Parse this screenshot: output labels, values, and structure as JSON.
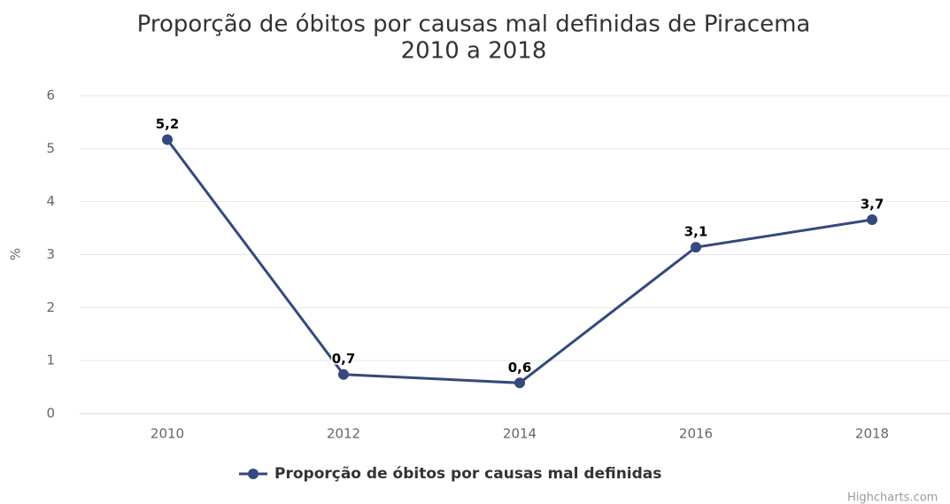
{
  "chart_data": {
    "type": "line",
    "title": [
      "Proporção de óbitos por causas mal definidas de Piracema",
      "2010 a 2018"
    ],
    "y_label": "%",
    "categories": [
      "2010",
      "2012",
      "2014",
      "2016",
      "2018"
    ],
    "series": [
      {
        "name": "Proporção de óbitos por causas mal definidas",
        "color": "#34497d",
        "values": [
          5.17,
          0.74,
          0.58,
          3.14,
          3.66
        ],
        "value_labels": [
          "5,2",
          "0,7",
          "0,6",
          "3,1",
          "3,7"
        ]
      }
    ],
    "ylim": [
      0,
      6
    ],
    "yticks": [
      0,
      1,
      2,
      3,
      4,
      5,
      6
    ],
    "grid": true,
    "legend": "bottom",
    "credits": "Highcharts.com"
  }
}
